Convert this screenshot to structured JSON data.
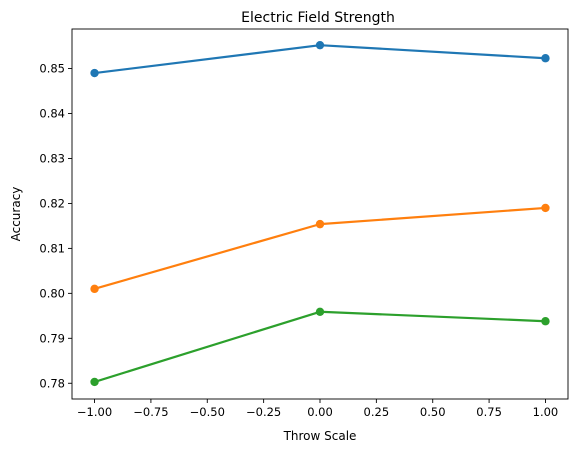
{
  "chart_data": {
    "type": "line",
    "title": "Electric Field Strength",
    "xlabel": "Throw Scale",
    "ylabel": "Accuracy",
    "xlim": [
      -1.1,
      1.1
    ],
    "ylim": [
      0.7765,
      0.8588
    ],
    "xticks": [
      -1.0,
      -0.75,
      -0.5,
      -0.25,
      0.0,
      0.25,
      0.5,
      0.75,
      1.0
    ],
    "xtick_labels": [
      "−1.00",
      "−0.75",
      "−0.50",
      "−0.25",
      "0.00",
      "0.25",
      "0.50",
      "0.75",
      "1.00"
    ],
    "yticks": [
      0.78,
      0.79,
      0.8,
      0.81,
      0.82,
      0.83,
      0.84,
      0.85
    ],
    "ytick_labels": [
      "0.78",
      "0.79",
      "0.80",
      "0.81",
      "0.82",
      "0.83",
      "0.84",
      "0.85"
    ],
    "grid": false,
    "x": [
      -1.0,
      0.0,
      1.0
    ],
    "series": [
      {
        "color": "#1f77b4",
        "values": [
          0.849,
          0.8552,
          0.8523
        ]
      },
      {
        "color": "#ff7f0e",
        "values": [
          0.801,
          0.8154,
          0.819
        ]
      },
      {
        "color": "#2ca02c",
        "values": [
          0.7803,
          0.7959,
          0.7938
        ]
      }
    ]
  }
}
